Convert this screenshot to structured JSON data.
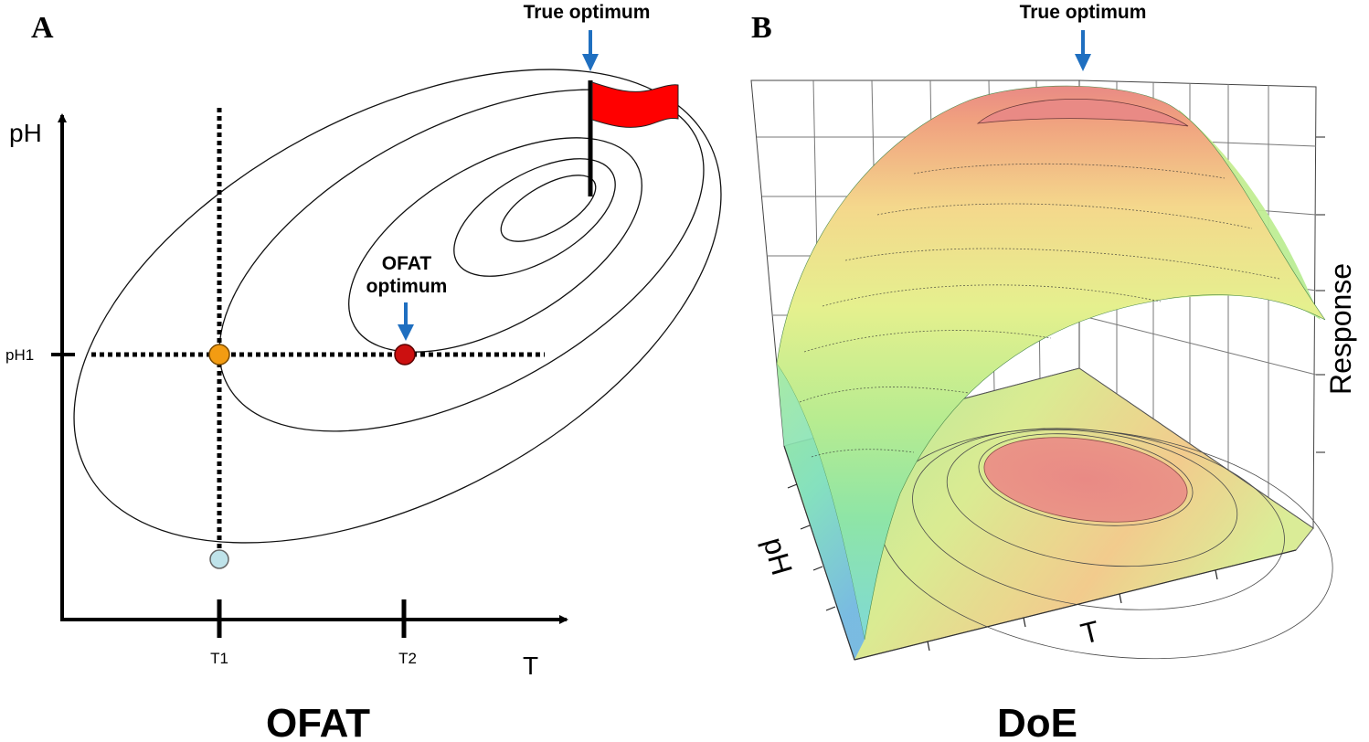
{
  "panel_a": {
    "letter": "A",
    "true_optimum_label": "True optimum",
    "ofat_optimum_label_line1": "OFAT",
    "ofat_optimum_label_line2": "optimum",
    "y_axis_label": "pH",
    "x_axis_label": "T",
    "y_tick_label": "pH1",
    "x_tick_labels": [
      "T1",
      "T2"
    ],
    "caption": "OFAT",
    "colors": {
      "flag": "#ff0000",
      "arrow": "#1f6fc0",
      "start_point": "#bfe3ea",
      "intermediate_point": "#f39c12",
      "ofat_point": "#cc1010"
    }
  },
  "panel_b": {
    "letter": "B",
    "true_optimum_label": "True optimum",
    "z_axis_label": "Response",
    "x_axis_label": "T",
    "y_axis_label": "pH",
    "caption": "DoE"
  }
}
